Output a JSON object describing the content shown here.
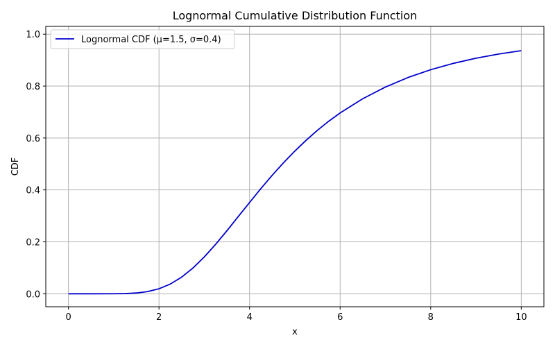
{
  "chart_data": {
    "type": "line",
    "title": "Lognormal Cumulative Distribution Function",
    "xlabel": "x",
    "ylabel": "CDF",
    "xlim": [
      -0.5,
      10.5
    ],
    "ylim": [
      -0.05,
      1.03
    ],
    "xticks": [
      0,
      2,
      4,
      6,
      8,
      10
    ],
    "yticks": [
      0.0,
      0.2,
      0.4,
      0.6,
      0.8,
      1.0
    ],
    "xtick_labels": [
      "0",
      "2",
      "4",
      "6",
      "8",
      "10"
    ],
    "ytick_labels": [
      "0.0",
      "0.2",
      "0.4",
      "0.6",
      "0.8",
      "1.0"
    ],
    "grid": true,
    "legend_position": "top-left",
    "series": [
      {
        "name": "Lognormal CDF (μ=1.5, σ=0.4)",
        "color": "#0000cc",
        "x": [
          0,
          0.5,
          1.0,
          1.25,
          1.5,
          1.75,
          2.0,
          2.25,
          2.5,
          2.75,
          3.0,
          3.25,
          3.5,
          3.75,
          4.0,
          4.25,
          4.5,
          4.75,
          5.0,
          5.25,
          5.5,
          5.75,
          6.0,
          6.5,
          7.0,
          7.5,
          8.0,
          8.5,
          9.0,
          9.5,
          10.0
        ],
        "y": [
          0,
          0,
          0.0001,
          0.0006,
          0.0029,
          0.0084,
          0.0193,
          0.0375,
          0.064,
          0.0992,
          0.1418,
          0.1903,
          0.2427,
          0.2973,
          0.3515,
          0.4052,
          0.4564,
          0.5047,
          0.5497,
          0.5914,
          0.6298,
          0.6648,
          0.6966,
          0.7513,
          0.7963,
          0.8331,
          0.8631,
          0.8875,
          0.9073,
          0.9235,
          0.9365
        ]
      }
    ]
  }
}
